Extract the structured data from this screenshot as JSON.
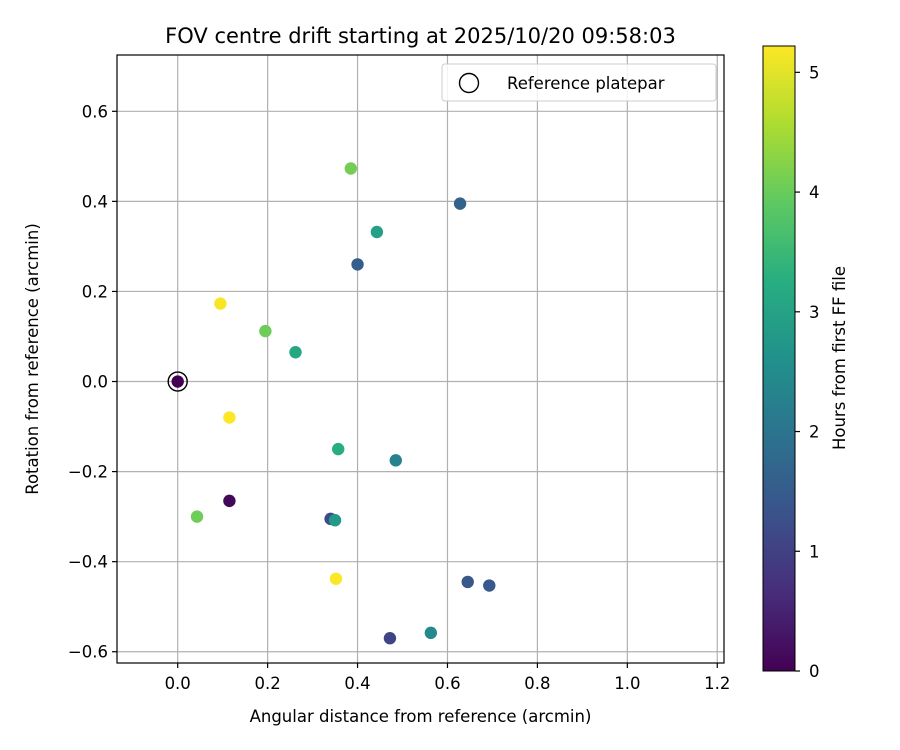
{
  "chart_data": {
    "type": "scatter",
    "title": "FOV centre drift starting at 2025/10/20 09:58:03",
    "xlabel": "Angular distance from reference (arcmin)",
    "ylabel": "Rotation from reference (arcmin)",
    "xlim": [
      -0.135,
      1.215
    ],
    "ylim": [
      -0.625,
      0.725
    ],
    "xticks": [
      0.0,
      0.2,
      0.4,
      0.6,
      0.8,
      1.0,
      1.2
    ],
    "xtick_labels": [
      "0.0",
      "0.2",
      "0.4",
      "0.6",
      "0.8",
      "1.0",
      "1.2"
    ],
    "yticks": [
      -0.6,
      -0.4,
      -0.2,
      0.0,
      0.2,
      0.4,
      0.6
    ],
    "ytick_labels": [
      "−0.6",
      "−0.4",
      "−0.2",
      "0.0",
      "0.2",
      "0.4",
      "0.6"
    ],
    "grid": true,
    "legend": {
      "position": "top-right",
      "entries": [
        {
          "label": "Reference platepar",
          "marker": "open-circle"
        }
      ]
    },
    "reference_point": {
      "x": 0.0,
      "y": 0.0
    },
    "colorbar": {
      "label": "Hours from first FF file",
      "range": [
        0,
        5.22
      ],
      "ticks": [
        0,
        1,
        2,
        3,
        4,
        5
      ],
      "tick_labels": [
        "0",
        "1",
        "2",
        "3",
        "4",
        "5"
      ],
      "colormap": "viridis"
    },
    "points": [
      {
        "x": 0.0,
        "y": 0.0,
        "hours": 0.0
      },
      {
        "x": 0.115,
        "y": -0.265,
        "hours": 0.1
      },
      {
        "x": 0.472,
        "y": -0.57,
        "hours": 1.05
      },
      {
        "x": 0.34,
        "y": -0.305,
        "hours": 1.2
      },
      {
        "x": 0.645,
        "y": -0.445,
        "hours": 1.4
      },
      {
        "x": 0.693,
        "y": -0.453,
        "hours": 1.45
      },
      {
        "x": 0.4,
        "y": 0.26,
        "hours": 1.55
      },
      {
        "x": 0.628,
        "y": 0.395,
        "hours": 1.65
      },
      {
        "x": 0.485,
        "y": -0.175,
        "hours": 2.3
      },
      {
        "x": 0.563,
        "y": -0.558,
        "hours": 2.45
      },
      {
        "x": 0.35,
        "y": -0.308,
        "hours": 2.8
      },
      {
        "x": 0.443,
        "y": 0.332,
        "hours": 2.95
      },
      {
        "x": 0.262,
        "y": 0.065,
        "hours": 3.1
      },
      {
        "x": 0.357,
        "y": -0.15,
        "hours": 3.25
      },
      {
        "x": 0.043,
        "y": -0.3,
        "hours": 4.05
      },
      {
        "x": 0.385,
        "y": 0.473,
        "hours": 4.1
      },
      {
        "x": 0.195,
        "y": 0.112,
        "hours": 4.05
      },
      {
        "x": 0.095,
        "y": 0.173,
        "hours": 5.18
      },
      {
        "x": 0.115,
        "y": -0.08,
        "hours": 5.2
      },
      {
        "x": 0.352,
        "y": -0.438,
        "hours": 5.2
      }
    ]
  }
}
